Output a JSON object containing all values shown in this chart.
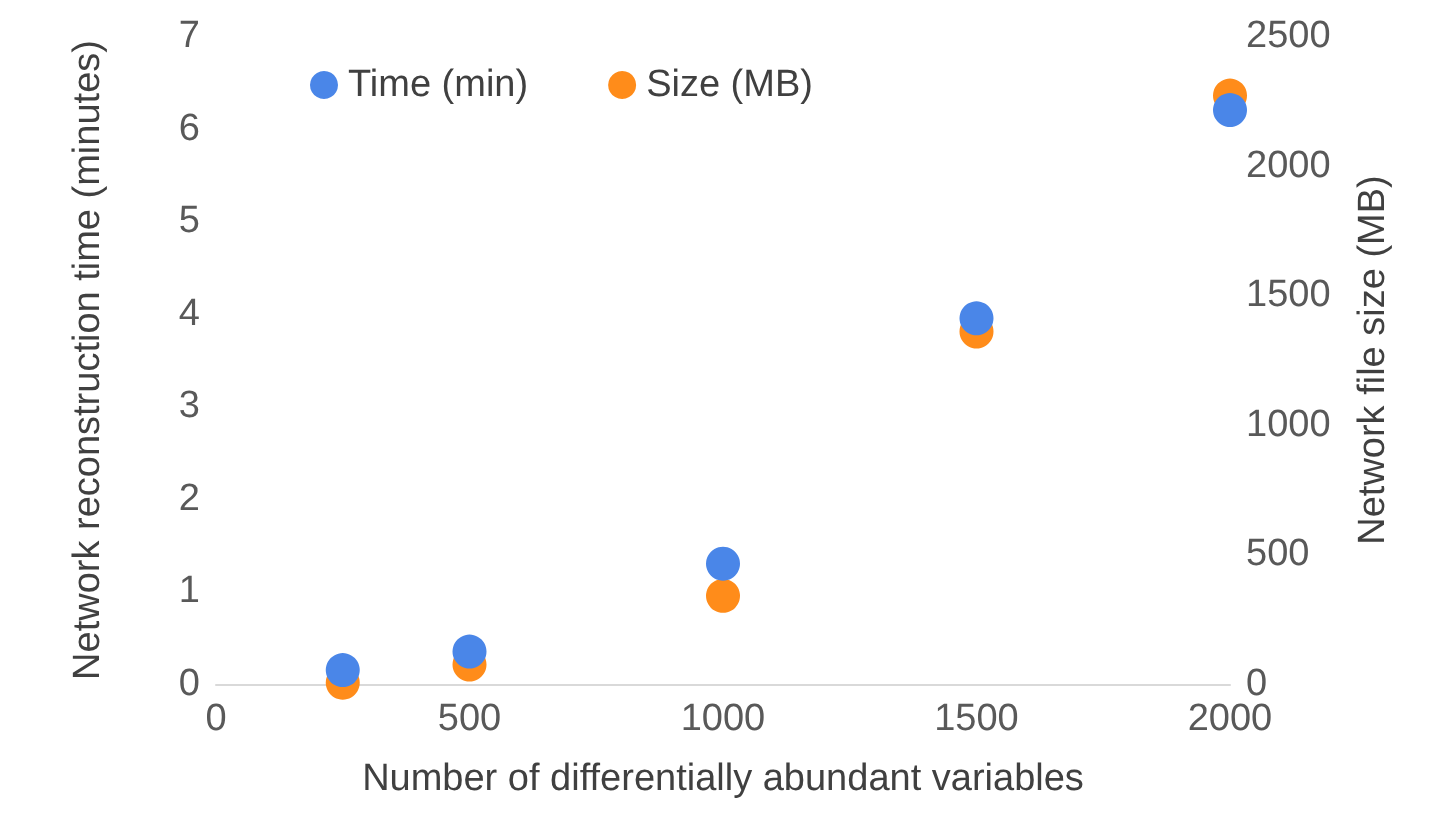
{
  "chart_data": {
    "type": "scatter",
    "xlabel": "Number of differentially abundant variables",
    "ylabel": "Network reconstruction time (minutes)",
    "y2label": "Network file size (MB)",
    "x": [
      250,
      500,
      1000,
      1500,
      2000
    ],
    "series": [
      {
        "name": "Time (min)",
        "color": "#4a86e8",
        "values": [
          0.15,
          0.35,
          1.3,
          3.95,
          6.2
        ]
      },
      {
        "name": "Size (MB)",
        "color": "#ff8c1a",
        "values": [
          5,
          75,
          340,
          1360,
          2270
        ],
        "axis": "y2"
      }
    ],
    "xlim": [
      0,
      2000
    ],
    "xticks": [
      0,
      500,
      1000,
      1500,
      2000
    ],
    "ylim": [
      0,
      7
    ],
    "yticks": [
      0,
      1,
      2,
      3,
      4,
      5,
      6,
      7
    ],
    "y2lim": [
      0,
      2500
    ],
    "y2ticks": [
      0,
      500,
      1000,
      1500,
      2000,
      2500
    ],
    "grid": false,
    "legend": "top left",
    "marker": "circle"
  }
}
